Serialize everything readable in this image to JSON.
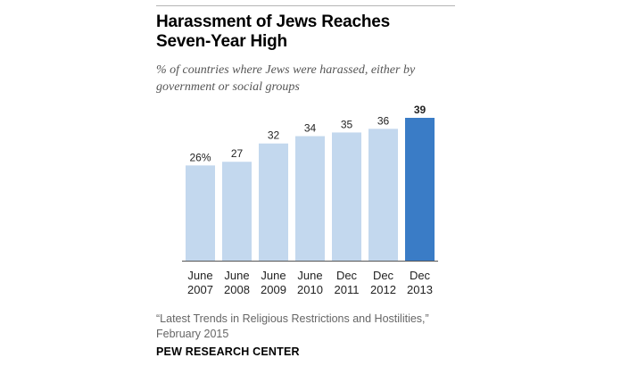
{
  "header": {
    "title_line1": "Harassment of Jews Reaches",
    "title_line2": "Seven-Year High",
    "subtitle_line1": "% of countries where Jews were harassed, either by",
    "subtitle_line2": "government or social groups"
  },
  "footer": {
    "source_line1": "“Latest Trends in Religious Restrictions and Hostilities,”",
    "source_line2": "February 2015",
    "logo": "PEW RESEARCH CENTER"
  },
  "colors": {
    "bar_default": "#c3d8ee",
    "bar_highlight": "#3a7cc6",
    "axis": "#555555"
  },
  "chart_data": {
    "type": "bar",
    "title": "Harassment of Jews Reaches Seven-Year High",
    "ylabel": "% of countries where Jews were harassed, either by government or social groups",
    "xlabel": "",
    "categories": [
      [
        "June",
        "2007"
      ],
      [
        "June",
        "2008"
      ],
      [
        "June",
        "2009"
      ],
      [
        "June",
        "2010"
      ],
      [
        "Dec",
        "2011"
      ],
      [
        "Dec",
        "2012"
      ],
      [
        "Dec",
        "2013"
      ]
    ],
    "values": [
      26,
      27,
      32,
      34,
      35,
      36,
      39
    ],
    "value_labels": [
      "26%",
      "27",
      "32",
      "34",
      "35",
      "36",
      "39"
    ],
    "highlight_index": 6,
    "ylim": [
      0,
      39
    ],
    "grid": false
  }
}
